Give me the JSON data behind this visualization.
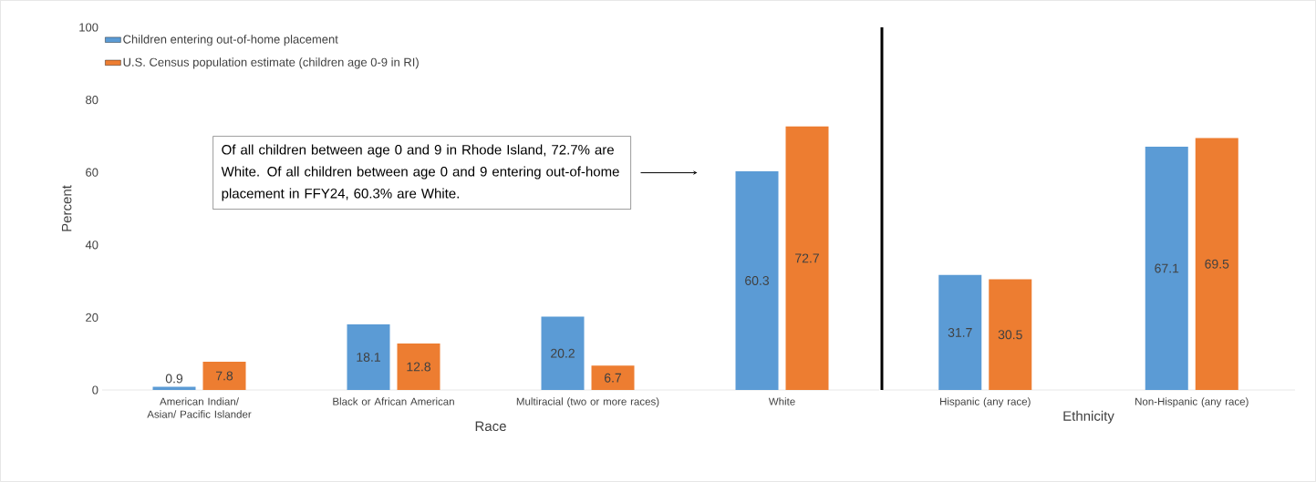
{
  "chart_data": [
    {
      "type": "bar",
      "ylabel": "Percent",
      "xlabel": "Race",
      "categories": [
        "American Indian/ Asian/ Pacific Islander",
        "Black or African American",
        "Multiracial (two or more races)",
        "White"
      ],
      "series": [
        {
          "name": "Children entering out-of-home placement",
          "color": "#5b9bd5",
          "values": [
            0.9,
            18.1,
            20.2,
            60.3
          ]
        },
        {
          "name": "U.S. Census population estimate (children age 0-9 in RI)",
          "color": "#ed7d31",
          "values": [
            7.8,
            12.8,
            6.7,
            72.7
          ]
        }
      ],
      "ylim": [
        0,
        100
      ],
      "yticks": [
        0,
        20,
        40,
        60,
        80,
        100
      ],
      "legend": "top left",
      "data_labels": true,
      "annotations": [
        "Of all children between age 0 and 9 in Rhode Island, 72.7% are White.  Of all children between age 0 and 9 entering out-of-home placement in FFY24, 60.3% are White."
      ]
    },
    {
      "type": "bar",
      "xlabel": "Ethnicity",
      "categories": [
        "Hispanic (any race)",
        "Non-Hispanic (any race)"
      ],
      "series": [
        {
          "color": "#5b9bd5",
          "values": [
            31.7,
            67.1
          ]
        },
        {
          "color": "#ed7d31",
          "values": [
            30.5,
            69.5
          ]
        }
      ],
      "ylim": [
        0,
        100
      ],
      "tick_labels": "x",
      "data_labels": true
    }
  ]
}
